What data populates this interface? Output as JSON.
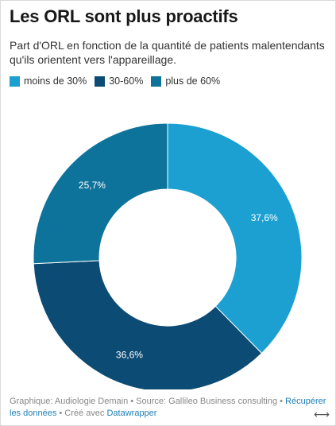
{
  "title": "Les ORL sont plus proactifs",
  "subtitle": "Part d'ORL en fonction de la quantité de patients malentendants qu'ils orientent vers l'appareillage.",
  "legend": [
    {
      "label": "moins de 30%",
      "color": "#1ba0d1"
    },
    {
      "label": "30-60%",
      "color": "#0b4b74"
    },
    {
      "label": "plus de 60%",
      "color": "#0e739b"
    }
  ],
  "chart_data": {
    "type": "pie",
    "variant": "donut",
    "categories": [
      "moins de 30%",
      "30-60%",
      "plus de 60%"
    ],
    "values": [
      37.6,
      36.6,
      25.7
    ],
    "data_labels": [
      "37,6%",
      "36,6%",
      "25,7%"
    ],
    "colors": [
      "#1ba0d1",
      "#0b4b74",
      "#0e739b"
    ],
    "title": "Les ORL sont plus proactifs",
    "legend_position": "top-left"
  },
  "footer": {
    "prefix": "Graphique: Audiologie Demain • Source: Gallileo Business consulting • ",
    "link_data": "Récupérer les données",
    "middle": " • Créé avec ",
    "link_tool": "Datawrapper"
  },
  "icons": {
    "resize": "resize-icon"
  },
  "resize_glyph": "⟷"
}
